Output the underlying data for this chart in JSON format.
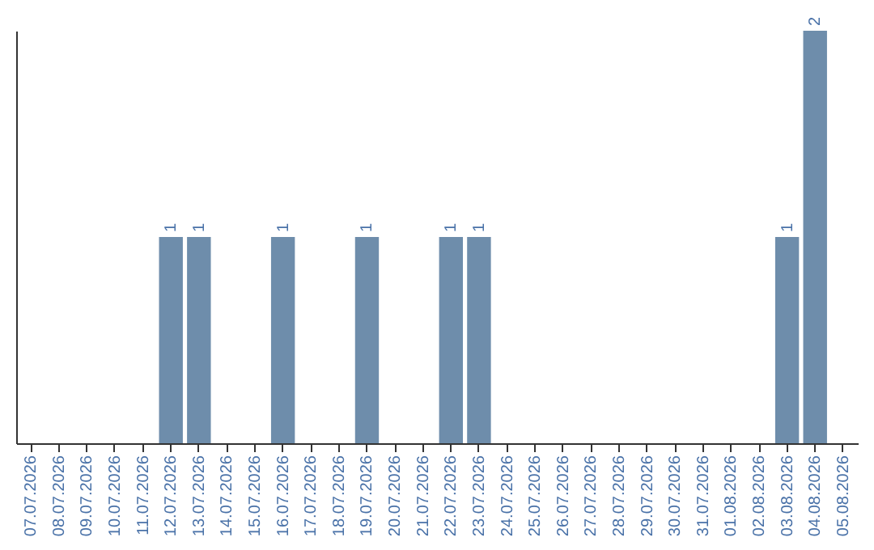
{
  "chart_data": {
    "type": "bar",
    "categories": [
      "07.07.2026",
      "08.07.2026",
      "09.07.2026",
      "10.07.2026",
      "11.07.2026",
      "12.07.2026",
      "13.07.2026",
      "14.07.2026",
      "15.07.2026",
      "16.07.2026",
      "17.07.2026",
      "18.07.2026",
      "19.07.2026",
      "20.07.2026",
      "21.07.2026",
      "22.07.2026",
      "23.07.2026",
      "24.07.2026",
      "25.07.2026",
      "26.07.2026",
      "27.07.2026",
      "28.07.2026",
      "29.07.2026",
      "30.07.2026",
      "31.07.2026",
      "01.08.2026",
      "02.08.2026",
      "03.08.2026",
      "04.08.2026",
      "05.08.2026"
    ],
    "values": [
      0,
      0,
      0,
      0,
      0,
      1,
      1,
      0,
      0,
      1,
      0,
      0,
      1,
      0,
      0,
      1,
      1,
      0,
      0,
      0,
      0,
      0,
      0,
      0,
      0,
      0,
      0,
      1,
      2,
      0
    ],
    "value_labels": [
      null,
      null,
      null,
      null,
      null,
      "1",
      "1",
      null,
      null,
      "1",
      null,
      null,
      "1",
      null,
      null,
      "1",
      "1",
      null,
      null,
      null,
      null,
      null,
      null,
      null,
      null,
      null,
      null,
      "1",
      "2",
      null
    ],
    "color": "#6e8dab"
  }
}
